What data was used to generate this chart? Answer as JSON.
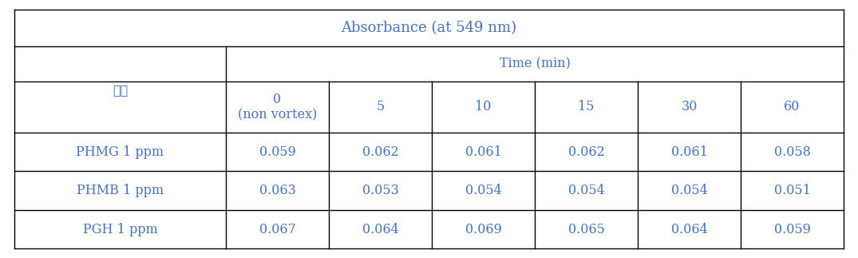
{
  "title": "Absorbance (at 549 nm)",
  "col_header_main": "Time (min)",
  "row_header_label": "용액",
  "time_labels": [
    "0\n(non vortex)",
    "5",
    "10",
    "15",
    "30",
    "60"
  ],
  "rows": [
    {
      "label": "PHMG 1 ppm",
      "values": [
        "0.059",
        "0.062",
        "0.061",
        "0.062",
        "0.061",
        "0.058"
      ]
    },
    {
      "label": "PHMB 1 ppm",
      "values": [
        "0.063",
        "0.053",
        "0.054",
        "0.054",
        "0.054",
        "0.051"
      ]
    },
    {
      "label": "PGH 1 ppm",
      "values": [
        "0.067",
        "0.064",
        "0.069",
        "0.065",
        "0.064",
        "0.059"
      ]
    }
  ],
  "text_color": "#4472c4",
  "border_color": "#000000",
  "bg_color": "#ffffff",
  "font_size": 11.5,
  "title_font_size": 13,
  "lw": 1.0
}
